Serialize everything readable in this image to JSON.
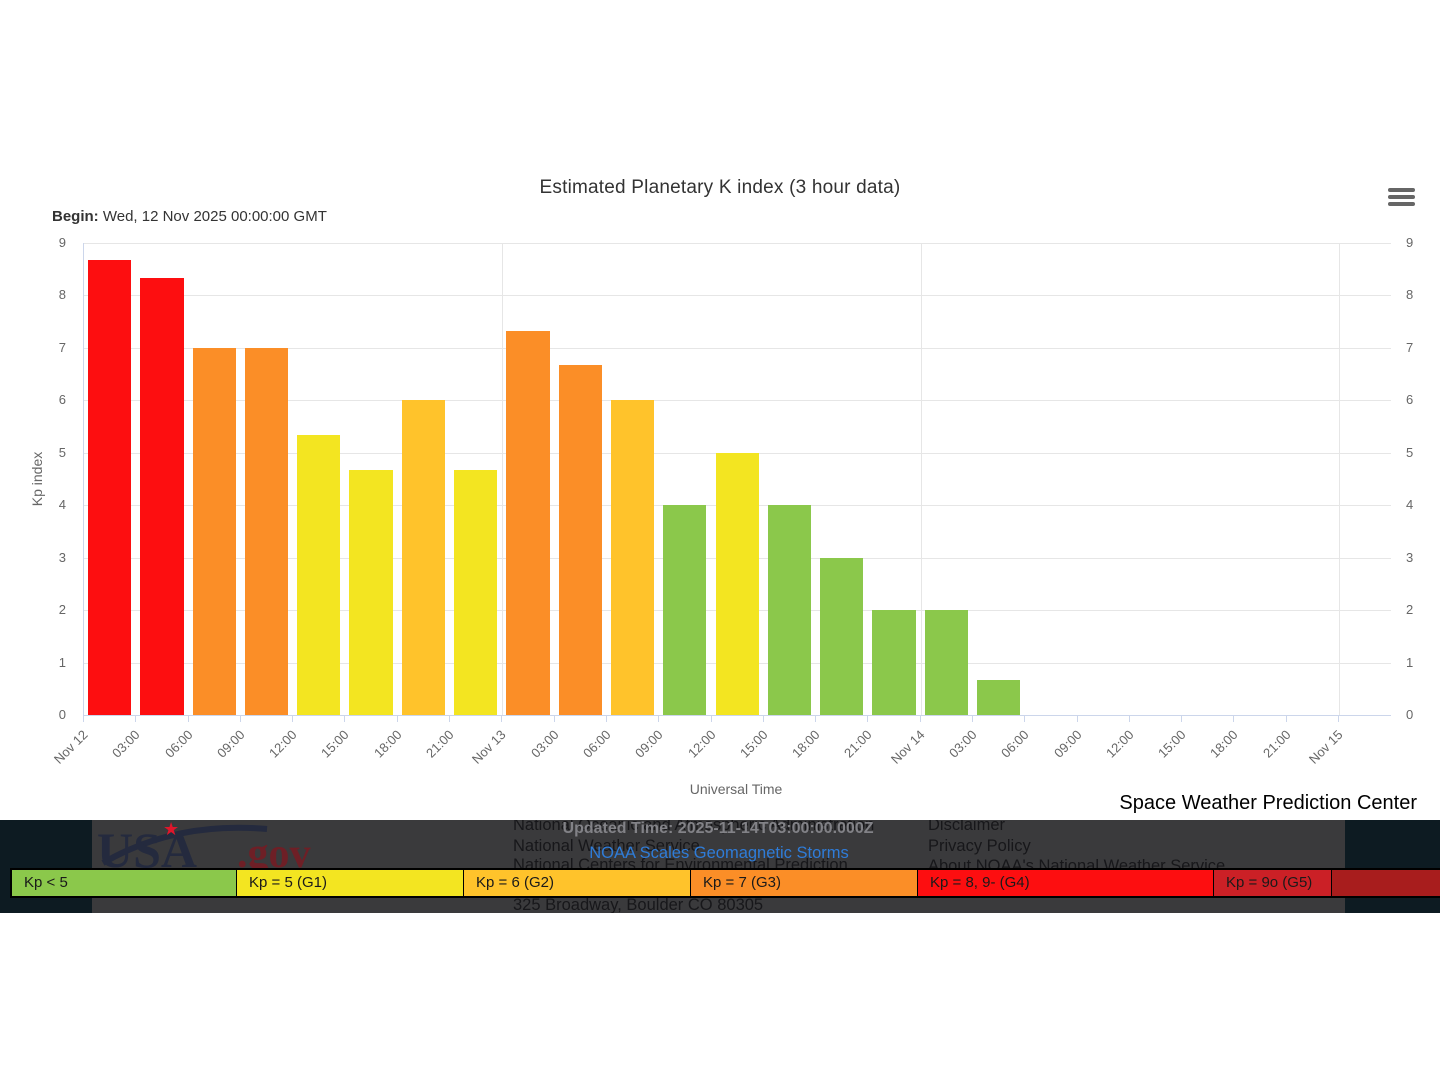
{
  "chart": {
    "title": "Estimated Planetary K index (3 hour data)",
    "begin_label": "Begin:",
    "begin_value": " Wed, 12 Nov 2025 00:00:00 GMT",
    "xlabel": "Universal Time",
    "ylabel": "Kp index",
    "context_menu_icon": "hamburger-icon"
  },
  "chart_data": {
    "type": "bar",
    "title": "Estimated Planetary K index (3 hour data)",
    "begin": "Wed, 12 Nov 2025 00:00:00 GMT",
    "xlabel": "Universal Time",
    "ylabel": "Kp index",
    "ylim": [
      0,
      9
    ],
    "y_ticks": [
      0,
      1,
      2,
      3,
      4,
      5,
      6,
      7,
      8,
      9
    ],
    "x_tick_labels": [
      "Nov 12",
      "03:00",
      "06:00",
      "09:00",
      "12:00",
      "15:00",
      "18:00",
      "21:00",
      "Nov 13",
      "03:00",
      "06:00",
      "09:00",
      "12:00",
      "15:00",
      "18:00",
      "21:00",
      "Nov 14",
      "03:00",
      "06:00",
      "09:00",
      "12:00",
      "15:00",
      "18:00",
      "21:00",
      "Nov 15"
    ],
    "grid": {
      "horizontal": "every integer",
      "vertical": "day boundaries",
      "day_line_slots": [
        8,
        16,
        24
      ]
    },
    "bars": [
      {
        "time": "Nov 12 00:00",
        "kp": 8.67,
        "level": "G4"
      },
      {
        "time": "Nov 12 03:00",
        "kp": 8.33,
        "level": "G4"
      },
      {
        "time": "Nov 12 06:00",
        "kp": 7.0,
        "level": "G3"
      },
      {
        "time": "Nov 12 09:00",
        "kp": 7.0,
        "level": "G3"
      },
      {
        "time": "Nov 12 12:00",
        "kp": 5.33,
        "level": "G1"
      },
      {
        "time": "Nov 12 15:00",
        "kp": 4.67,
        "level": "G1"
      },
      {
        "time": "Nov 12 18:00",
        "kp": 6.0,
        "level": "G2"
      },
      {
        "time": "Nov 12 21:00",
        "kp": 4.67,
        "level": "G1"
      },
      {
        "time": "Nov 13 00:00",
        "kp": 7.33,
        "level": "G3"
      },
      {
        "time": "Nov 13 03:00",
        "kp": 6.67,
        "level": "G3"
      },
      {
        "time": "Nov 13 06:00",
        "kp": 6.0,
        "level": "G2"
      },
      {
        "time": "Nov 13 09:00",
        "kp": 4.0,
        "level": "below5"
      },
      {
        "time": "Nov 13 12:00",
        "kp": 5.0,
        "level": "G1"
      },
      {
        "time": "Nov 13 15:00",
        "kp": 4.0,
        "level": "below5"
      },
      {
        "time": "Nov 13 18:00",
        "kp": 3.0,
        "level": "below5"
      },
      {
        "time": "Nov 13 21:00",
        "kp": 2.0,
        "level": "below5"
      },
      {
        "time": "Nov 14 00:00",
        "kp": 2.0,
        "level": "below5"
      },
      {
        "time": "Nov 14 03:00",
        "kp": 0.67,
        "level": "below5"
      }
    ],
    "colors": {
      "below5": "#8BC84B",
      "G1": "#F3E521",
      "G2": "#FFC32B",
      "G3": "#FB8E27",
      "G4": "#FD0E10",
      "G5": "#CB2026",
      "G5_trailer": "#A81D1D"
    },
    "legend_position": "bottom strip"
  },
  "legend": {
    "items": [
      {
        "label": "Kp < 5",
        "level": "below5"
      },
      {
        "label": "Kp = 5 (G1)",
        "level": "G1"
      },
      {
        "label": "Kp = 6 (G2)",
        "level": "G2"
      },
      {
        "label": "Kp = 7 (G3)",
        "level": "G3"
      },
      {
        "label": "Kp = 8, 9- (G4)",
        "level": "G4"
      },
      {
        "label": "Kp = 9o (G5)",
        "level": "G5"
      }
    ]
  },
  "branding": {
    "swpc_title": "Space Weather Prediction Center",
    "usa_gov_main": "USA",
    "usa_gov_suffix": ".gov",
    "usa_gov_colors": {
      "main": "#242A3E",
      "suffix": "#6E1F26",
      "star": "#E0162B"
    }
  },
  "footer": {
    "updated_time": "Updated Time: 2025-11-14T03:00:00.000Z",
    "scales_link": "NOAA Scales Geomagnetic Storms",
    "agency_lines": [
      "National Oceanic and Atmospheric Administration",
      "National Weather Service",
      "National Centers for Environmental Prediction",
      "325 Broadway, Boulder CO 80305"
    ],
    "links": [
      "Disclaimer",
      "Privacy Policy",
      "About NOAA's National Weather Service"
    ]
  }
}
